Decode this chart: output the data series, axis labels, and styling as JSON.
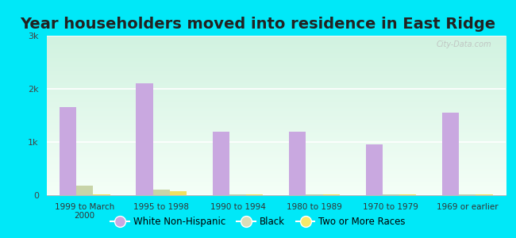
{
  "title": "Year householders moved into residence in East Ridge",
  "categories": [
    "1999 to March\n2000",
    "1995 to 1998",
    "1990 to 1994",
    "1980 to 1989",
    "1970 to 1979",
    "1969 or earlier"
  ],
  "white_non_hispanic": [
    1650,
    2100,
    1200,
    1200,
    950,
    1550
  ],
  "black": [
    175,
    100,
    20,
    20,
    15,
    15
  ],
  "two_or_more_races": [
    10,
    70,
    15,
    10,
    10,
    10
  ],
  "bar_colors": {
    "white": "#c9a8e0",
    "black": "#c8d4a8",
    "two_more": "#f0e060"
  },
  "legend_circle_colors": {
    "white": "#c9a8e0",
    "black": "#d8ddb8",
    "two_more": "#f5e96a"
  },
  "background_outer": "#00e8f8",
  "ylim": [
    0,
    3000
  ],
  "yticks": [
    0,
    1000,
    2000,
    3000
  ],
  "ytick_labels": [
    "0",
    "1k",
    "2k",
    "3k"
  ],
  "watermark": "City-Data.com",
  "legend_labels": [
    "White Non-Hispanic",
    "Black",
    "Two or More Races"
  ],
  "title_fontsize": 14,
  "title_color": "#222222"
}
